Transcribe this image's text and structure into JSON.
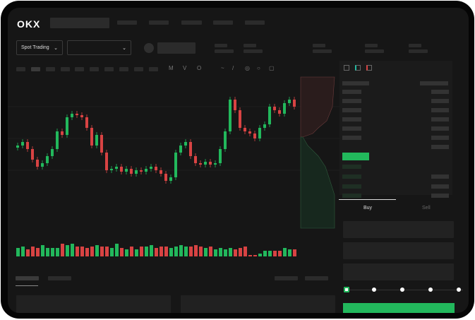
{
  "header": {
    "logo": "OKX"
  },
  "market_selector": {
    "label": "Spot Trading",
    "chevron": "chevron-down-icon"
  },
  "pair_selector": {
    "value": "",
    "chevron": "chevron-down-icon"
  },
  "order_form": {
    "tabs": [
      "Buy",
      "Sell"
    ],
    "active_tab": "Buy",
    "slider_levels": [
      0,
      25,
      50,
      75,
      100
    ],
    "slider_value": 0
  },
  "colors": {
    "up": "#22b85c",
    "down": "#d84343",
    "background": "#161616"
  },
  "chart_data": {
    "type": "candlestick",
    "close": [
      95,
      100,
      90,
      75,
      65,
      70,
      80,
      90,
      115,
      110,
      135,
      140,
      138,
      135,
      120,
      95,
      110,
      85,
      60,
      62,
      65,
      58,
      62,
      55,
      60,
      58,
      62,
      65,
      60,
      55,
      45,
      50,
      85,
      95,
      100,
      80,
      70,
      68,
      72,
      68,
      70,
      90,
      115,
      160,
      145,
      120,
      115,
      112,
      105,
      120,
      125,
      150,
      145,
      140,
      155,
      160,
      150
    ],
    "volume": [
      6,
      7,
      5,
      7,
      6,
      8,
      6,
      6,
      6,
      9,
      8,
      9,
      7,
      7,
      6,
      7,
      8,
      7,
      7,
      6,
      9,
      6,
      5,
      7,
      5,
      7,
      7,
      8,
      6,
      7,
      7,
      6,
      7,
      8,
      7,
      7,
      8,
      7,
      6,
      7,
      5,
      6,
      5,
      6,
      5,
      6,
      7,
      1,
      1,
      2,
      4,
      4,
      4,
      4,
      6,
      5,
      5
    ]
  }
}
